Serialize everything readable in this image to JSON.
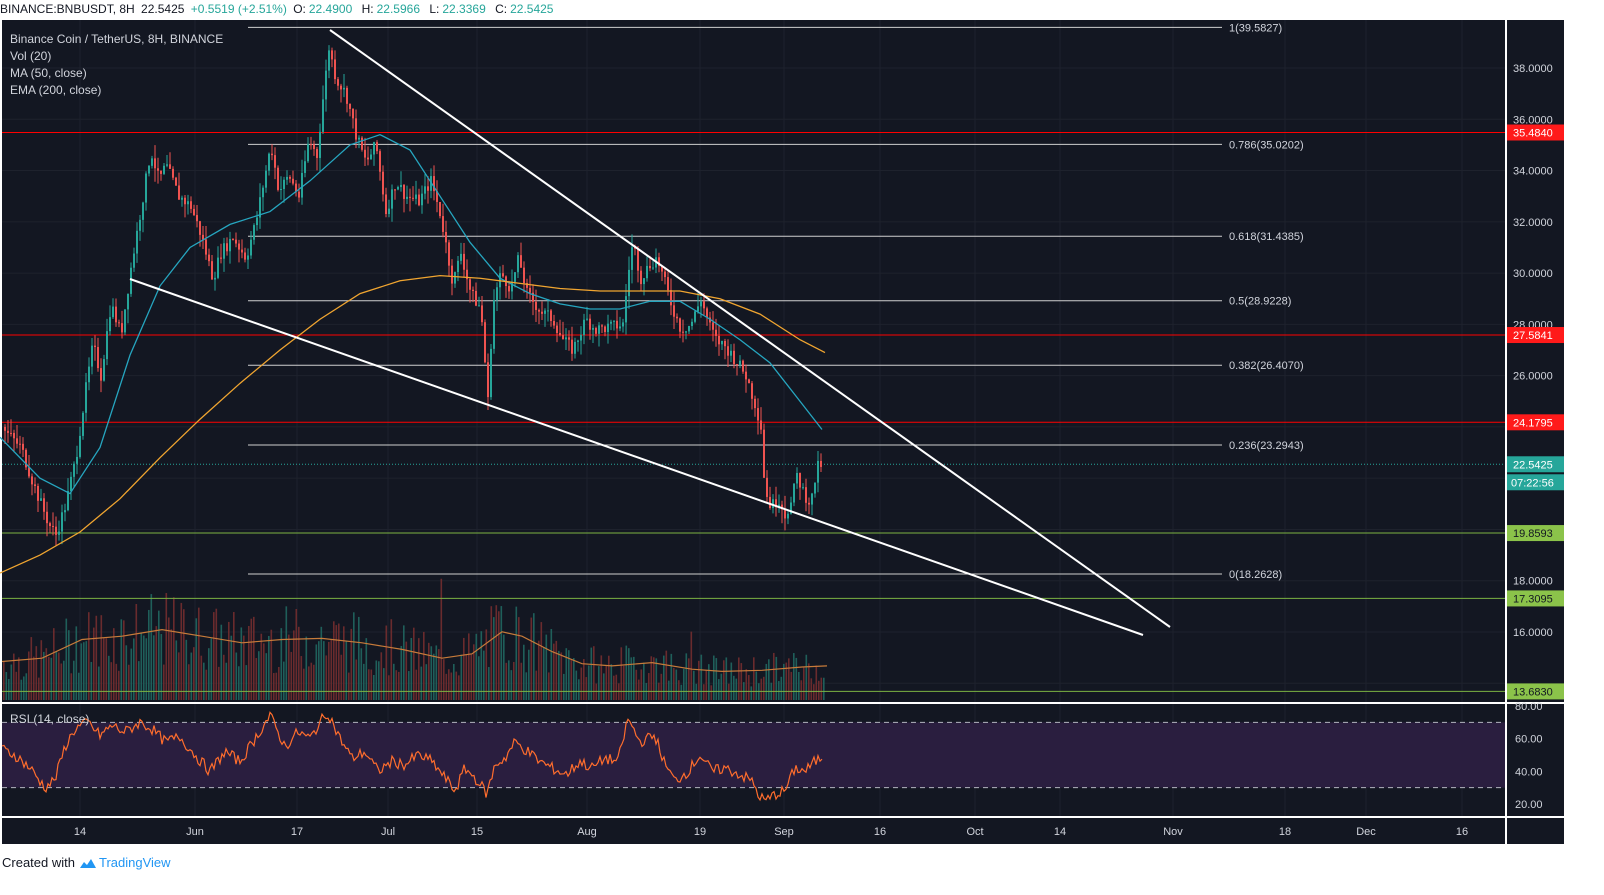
{
  "header": {
    "symbol": "BINANCE:BNBUSDT, 8H",
    "last": "22.5425",
    "change": "+0.5519 (+2.51%)",
    "open_label": "O:",
    "open": "22.4900",
    "high_label": "H:",
    "high": "22.5966",
    "low_label": "L:",
    "low": "22.3369",
    "close_label": "C:",
    "close": "22.5425"
  },
  "legend": {
    "title": "Binance Coin / TetherUS, 8H, BINANCE",
    "vol": "Vol (20)",
    "ma": "MA (50, close)",
    "ema": "EMA (200, close)"
  },
  "rsi_label": "RSI (14, close)",
  "footer": {
    "created_with": "Created with",
    "brand": "TradingView"
  },
  "colors": {
    "background": "#131722",
    "grid": "#1e222d",
    "up": "#26a69a",
    "down": "#ef5350",
    "resistance": "#ff0000",
    "support": "#7cb342",
    "fib": "#cfcfcf",
    "trendline": "#ffffff",
    "ma": "#26a6c0",
    "ema": "#f0a530",
    "rsi_line": "#ff6d2d",
    "rsi_band": "#2a1e3f"
  },
  "chart_data": {
    "type": "candlestick",
    "price_axis": {
      "ylim": [
        12.4,
        40.0
      ],
      "ticks": [
        "38.0000",
        "36.0000",
        "34.0000",
        "32.0000",
        "30.0000",
        "28.0000",
        "26.0000",
        "18.0000",
        "16.0000"
      ]
    },
    "time_axis": {
      "labels": [
        "14",
        "Jun",
        "17",
        "Jul",
        "15",
        "Aug",
        "19",
        "Sep",
        "16",
        "Oct",
        "14",
        "Nov",
        "18",
        "Dec",
        "16"
      ]
    },
    "fibonacci": [
      {
        "label": "1(39.5827)",
        "value": 39.5827
      },
      {
        "label": "0.786(35.0202)",
        "value": 35.0202
      },
      {
        "label": "0.618(31.4385)",
        "value": 31.4385
      },
      {
        "label": "0.5(28.9228)",
        "value": 28.9228
      },
      {
        "label": "0.382(26.4070)",
        "value": 26.407
      },
      {
        "label": "0.236(23.2943)",
        "value": 23.2943
      },
      {
        "label": "0(18.2628)",
        "value": 18.2628
      }
    ],
    "horizontal_levels": [
      {
        "label": "35.4840",
        "value": 35.484,
        "kind": "resistance"
      },
      {
        "label": "27.5841",
        "value": 27.5841,
        "kind": "resistance"
      },
      {
        "label": "24.1795",
        "value": 24.1795,
        "kind": "resistance"
      },
      {
        "label": "19.8593",
        "value": 19.8593,
        "kind": "support"
      },
      {
        "label": "17.3095",
        "value": 17.3095,
        "kind": "support"
      },
      {
        "label": "13.6830",
        "value": 13.683,
        "kind": "support"
      }
    ],
    "last_price": {
      "label": "22.5425",
      "value": 22.5425,
      "countdown": "07:22:56"
    },
    "price_path": [
      [
        0,
        24.0
      ],
      [
        20,
        23.2
      ],
      [
        35,
        21.5
      ],
      [
        48,
        20.2
      ],
      [
        55,
        19.8
      ],
      [
        65,
        21.0
      ],
      [
        75,
        22.8
      ],
      [
        85,
        25.5
      ],
      [
        92,
        27.2
      ],
      [
        100,
        26.0
      ],
      [
        110,
        28.8
      ],
      [
        120,
        27.6
      ],
      [
        130,
        30.2
      ],
      [
        140,
        32.5
      ],
      [
        150,
        34.8
      ],
      [
        158,
        33.6
      ],
      [
        165,
        34.2
      ],
      [
        178,
        33.0
      ],
      [
        190,
        32.6
      ],
      [
        200,
        31.5
      ],
      [
        212,
        29.8
      ],
      [
        220,
        30.8
      ],
      [
        232,
        31.4
      ],
      [
        245,
        30.6
      ],
      [
        255,
        32.0
      ],
      [
        262,
        33.4
      ],
      [
        270,
        35.0
      ],
      [
        278,
        33.2
      ],
      [
        288,
        33.8
      ],
      [
        298,
        33.0
      ],
      [
        308,
        35.2
      ],
      [
        316,
        34.6
      ],
      [
        322,
        36.8
      ],
      [
        328,
        38.8
      ],
      [
        335,
        37.6
      ],
      [
        345,
        37.0
      ],
      [
        355,
        35.4
      ],
      [
        365,
        34.3
      ],
      [
        375,
        35.0
      ],
      [
        385,
        32.4
      ],
      [
        395,
        33.6
      ],
      [
        405,
        33.0
      ],
      [
        418,
        32.8
      ],
      [
        430,
        33.6
      ],
      [
        440,
        32.2
      ],
      [
        452,
        29.6
      ],
      [
        460,
        30.8
      ],
      [
        470,
        29.2
      ],
      [
        480,
        28.6
      ],
      [
        487,
        25.0
      ],
      [
        492,
        28.8
      ],
      [
        500,
        30.0
      ],
      [
        510,
        29.4
      ],
      [
        518,
        30.6
      ],
      [
        526,
        29.2
      ],
      [
        540,
        28.5
      ],
      [
        552,
        28.2
      ],
      [
        562,
        27.4
      ],
      [
        572,
        27.0
      ],
      [
        585,
        28.2
      ],
      [
        595,
        27.8
      ],
      [
        610,
        27.9
      ],
      [
        622,
        28.0
      ],
      [
        628,
        30.2
      ],
      [
        632,
        31.2
      ],
      [
        640,
        29.8
      ],
      [
        648,
        30.3
      ],
      [
        656,
        30.6
      ],
      [
        664,
        29.6
      ],
      [
        672,
        28.6
      ],
      [
        680,
        27.8
      ],
      [
        690,
        28.0
      ],
      [
        700,
        29.0
      ],
      [
        708,
        28.0
      ],
      [
        715,
        27.4
      ],
      [
        725,
        27.1
      ],
      [
        735,
        26.6
      ],
      [
        745,
        26.0
      ],
      [
        755,
        24.8
      ],
      [
        760,
        24.0
      ],
      [
        764,
        21.5
      ],
      [
        770,
        20.9
      ],
      [
        778,
        21.2
      ],
      [
        784,
        20.6
      ],
      [
        790,
        21.0
      ],
      [
        796,
        22.1
      ],
      [
        803,
        21.4
      ],
      [
        810,
        21.0
      ],
      [
        816,
        22.4
      ],
      [
        821,
        22.54
      ]
    ],
    "ma50_path": [
      [
        0,
        23.6
      ],
      [
        40,
        22.0
      ],
      [
        70,
        21.4
      ],
      [
        100,
        23.2
      ],
      [
        130,
        26.8
      ],
      [
        160,
        29.5
      ],
      [
        190,
        31.0
      ],
      [
        230,
        31.9
      ],
      [
        270,
        32.4
      ],
      [
        310,
        33.6
      ],
      [
        350,
        35.0
      ],
      [
        380,
        35.4
      ],
      [
        410,
        34.8
      ],
      [
        440,
        33.0
      ],
      [
        470,
        31.2
      ],
      [
        500,
        29.8
      ],
      [
        530,
        29.2
      ],
      [
        560,
        28.8
      ],
      [
        590,
        28.6
      ],
      [
        620,
        28.6
      ],
      [
        650,
        28.9
      ],
      [
        680,
        28.9
      ],
      [
        710,
        28.2
      ],
      [
        740,
        27.4
      ],
      [
        770,
        26.5
      ],
      [
        800,
        25.0
      ],
      [
        822,
        23.9
      ]
    ],
    "ema200_path": [
      [
        0,
        18.3
      ],
      [
        40,
        19.0
      ],
      [
        80,
        19.9
      ],
      [
        120,
        21.2
      ],
      [
        160,
        22.8
      ],
      [
        200,
        24.3
      ],
      [
        240,
        25.7
      ],
      [
        280,
        27.0
      ],
      [
        320,
        28.2
      ],
      [
        360,
        29.2
      ],
      [
        400,
        29.7
      ],
      [
        440,
        29.9
      ],
      [
        480,
        29.8
      ],
      [
        520,
        29.6
      ],
      [
        560,
        29.4
      ],
      [
        600,
        29.3
      ],
      [
        640,
        29.3
      ],
      [
        680,
        29.3
      ],
      [
        720,
        29.0
      ],
      [
        760,
        28.4
      ],
      [
        800,
        27.4
      ],
      [
        825,
        26.9
      ]
    ],
    "volume_path": [
      [
        0,
        0.35
      ],
      [
        40,
        0.38
      ],
      [
        80,
        0.55
      ],
      [
        120,
        0.58
      ],
      [
        160,
        0.64
      ],
      [
        200,
        0.58
      ],
      [
        240,
        0.52
      ],
      [
        280,
        0.55
      ],
      [
        320,
        0.56
      ],
      [
        360,
        0.52
      ],
      [
        400,
        0.46
      ],
      [
        440,
        0.38
      ],
      [
        470,
        0.42
      ],
      [
        500,
        0.62
      ],
      [
        520,
        0.58
      ],
      [
        550,
        0.44
      ],
      [
        580,
        0.33
      ],
      [
        610,
        0.31
      ],
      [
        650,
        0.34
      ],
      [
        690,
        0.28
      ],
      [
        720,
        0.26
      ],
      [
        760,
        0.27
      ],
      [
        800,
        0.3
      ],
      [
        825,
        0.31
      ]
    ],
    "rsi": {
      "levels": {
        "upper": 70,
        "lower": 30
      },
      "ticks": [
        "80.00",
        "60.00",
        "40.00",
        "20.00"
      ],
      "path": [
        [
          0,
          54
        ],
        [
          15,
          50
        ],
        [
          30,
          42
        ],
        [
          45,
          30
        ],
        [
          55,
          35
        ],
        [
          65,
          55
        ],
        [
          75,
          66
        ],
        [
          88,
          70
        ],
        [
          100,
          62
        ],
        [
          112,
          68
        ],
        [
          125,
          64
        ],
        [
          140,
          70
        ],
        [
          152,
          66
        ],
        [
          165,
          58
        ],
        [
          180,
          61
        ],
        [
          195,
          50
        ],
        [
          210,
          40
        ],
        [
          225,
          52
        ],
        [
          240,
          46
        ],
        [
          255,
          60
        ],
        [
          270,
          74
        ],
        [
          285,
          55
        ],
        [
          298,
          64
        ],
        [
          310,
          60
        ],
        [
          320,
          70
        ],
        [
          328,
          76
        ],
        [
          340,
          60
        ],
        [
          352,
          48
        ],
        [
          365,
          52
        ],
        [
          378,
          40
        ],
        [
          392,
          46
        ],
        [
          405,
          44
        ],
        [
          418,
          50
        ],
        [
          432,
          46
        ],
        [
          445,
          36
        ],
        [
          455,
          28
        ],
        [
          465,
          42
        ],
        [
          478,
          34
        ],
        [
          487,
          26
        ],
        [
          495,
          44
        ],
        [
          505,
          48
        ],
        [
          515,
          58
        ],
        [
          528,
          52
        ],
        [
          540,
          46
        ],
        [
          552,
          42
        ],
        [
          566,
          38
        ],
        [
          580,
          46
        ],
        [
          592,
          42
        ],
        [
          605,
          48
        ],
        [
          618,
          46
        ],
        [
          628,
          72
        ],
        [
          640,
          58
        ],
        [
          655,
          62
        ],
        [
          665,
          44
        ],
        [
          675,
          34
        ],
        [
          688,
          40
        ],
        [
          700,
          50
        ],
        [
          712,
          40
        ],
        [
          725,
          42
        ],
        [
          740,
          38
        ],
        [
          752,
          34
        ],
        [
          760,
          24
        ],
        [
          766,
          22
        ],
        [
          775,
          26
        ],
        [
          785,
          28
        ],
        [
          795,
          42
        ],
        [
          805,
          40
        ],
        [
          815,
          46
        ],
        [
          823,
          49
        ]
      ]
    }
  }
}
